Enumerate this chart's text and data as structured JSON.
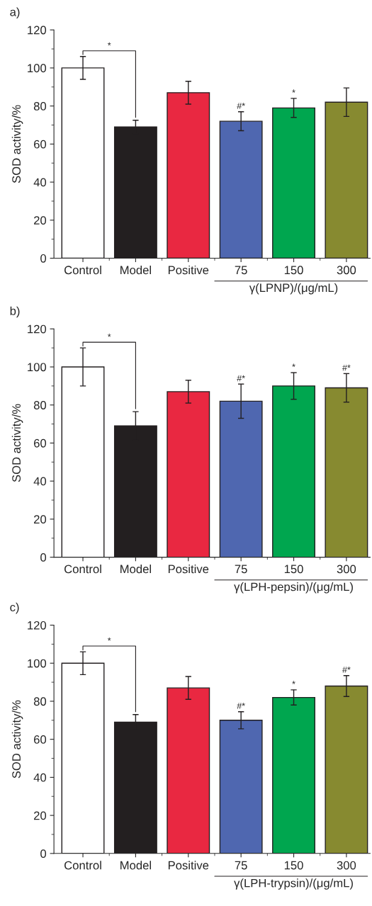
{
  "chart_data": [
    {
      "type": "bar",
      "title": "a)",
      "ylabel": "SOD activity/%",
      "xlabel": "γ(LPNP)/(μg/mL)",
      "categories": [
        "Control",
        "Model",
        "Positive",
        "75",
        "150",
        "300"
      ],
      "values": [
        100,
        69,
        87,
        72,
        79,
        82
      ],
      "errors": [
        6,
        3.5,
        6,
        5,
        5,
        7.5
      ],
      "colors": [
        "#ffffff",
        "#231f20",
        "#e92841",
        "#4f67b0",
        "#00a64f",
        "#878a30"
      ],
      "ylim": [
        0,
        120
      ],
      "yticks": [
        0,
        20,
        40,
        60,
        80,
        100,
        120
      ],
      "grid": false,
      "annotations": [
        "*",
        {
          "text": "#*",
          "x": "75",
          "y": 77
        },
        {
          "text": "*",
          "x": "150",
          "y": 84
        }
      ]
    },
    {
      "type": "bar",
      "title": "b)",
      "ylabel": "SOD activity/%",
      "xlabel": "γ(LPH-pepsin)/(μg/mL)",
      "categories": [
        "Control",
        "Model",
        "Positive",
        "75",
        "150",
        "300"
      ],
      "values": [
        100,
        69,
        87,
        82,
        90,
        89
      ],
      "errors": [
        10,
        7.5,
        6,
        9,
        7,
        7.5
      ],
      "colors": [
        "#ffffff",
        "#231f20",
        "#e92841",
        "#4f67b0",
        "#00a64f",
        "#878a30"
      ],
      "ylim": [
        0,
        120
      ],
      "yticks": [
        0,
        20,
        40,
        60,
        80,
        100,
        120
      ],
      "grid": false,
      "annotations": [
        "*",
        {
          "text": "#*",
          "x": "75",
          "y": 91
        },
        {
          "text": "*",
          "x": "150",
          "y": 97
        },
        {
          "text": "#*",
          "x": "300",
          "y": 96.5
        }
      ]
    },
    {
      "type": "bar",
      "title": "c)",
      "ylabel": "SOD activity/%",
      "xlabel": "γ(LPH-trypsin)/(μg/mL)",
      "categories": [
        "Control",
        "Model",
        "Positive",
        "75",
        "150",
        "300"
      ],
      "values": [
        100,
        69,
        87,
        70,
        82,
        88
      ],
      "errors": [
        6,
        4,
        6,
        4.5,
        4,
        5.5
      ],
      "colors": [
        "#ffffff",
        "#231f20",
        "#e92841",
        "#4f67b0",
        "#00a64f",
        "#878a30"
      ],
      "ylim": [
        0,
        120
      ],
      "yticks": [
        0,
        20,
        40,
        60,
        80,
        100,
        120
      ],
      "grid": false,
      "annotations": [
        "*",
        {
          "text": "#*",
          "x": "75",
          "y": 74.5
        },
        {
          "text": "*",
          "x": "150",
          "y": 86
        },
        {
          "text": "#*",
          "x": "300",
          "y": 93.5
        }
      ]
    }
  ]
}
